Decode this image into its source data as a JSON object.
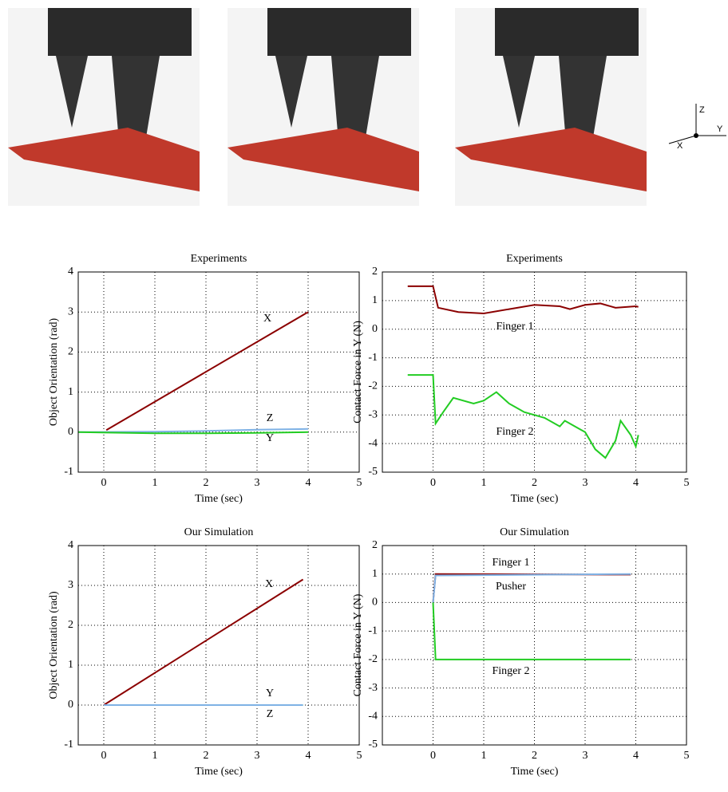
{
  "photo_axes": {
    "z": "Z",
    "y": "Y",
    "x": "X"
  },
  "chart_data": [
    {
      "type": "line",
      "title": "Experiments",
      "xlabel": "Time (sec)",
      "ylabel": "Object Orientation (rad)",
      "xlim": [
        -0.5,
        5
      ],
      "xticks": [
        0,
        1,
        2,
        3,
        4,
        5
      ],
      "ylim": [
        -1,
        4
      ],
      "yticks": [
        -1,
        0,
        1,
        2,
        3,
        4
      ],
      "grid": true,
      "annotations": [
        "X",
        "Z",
        "Y"
      ],
      "series": [
        {
          "color": "#8b0000",
          "x": [
            0.05,
            4
          ],
          "values": [
            0.05,
            3
          ]
        },
        {
          "color": "#7fb2e5",
          "x": [
            -0.5,
            1,
            2,
            3,
            4
          ],
          "values": [
            0,
            0.01,
            0.03,
            0.06,
            0.08
          ]
        },
        {
          "color": "#22cc22",
          "x": [
            -0.5,
            0.5,
            1,
            2,
            3,
            4
          ],
          "values": [
            0,
            -0.02,
            -0.03,
            -0.03,
            -0.02,
            0
          ]
        }
      ]
    },
    {
      "type": "line",
      "title": "Experiments",
      "xlabel": "Time (sec)",
      "ylabel": "Contact Force in Y (N)",
      "xlim": [
        -1,
        5
      ],
      "xticks": [
        0,
        1,
        2,
        3,
        4,
        5
      ],
      "ylim": [
        -5,
        2
      ],
      "yticks": [
        -5,
        -4,
        -3,
        -2,
        -1,
        0,
        1,
        2
      ],
      "grid": true,
      "annotations": [
        "Finger 1",
        "Finger 2"
      ],
      "series": [
        {
          "color": "#8b0000",
          "x": [
            -0.5,
            0,
            0.1,
            0.5,
            1,
            1.5,
            2,
            2.5,
            2.7,
            3,
            3.3,
            3.6,
            4,
            4.05
          ],
          "values": [
            1.5,
            1.5,
            0.75,
            0.6,
            0.55,
            0.7,
            0.85,
            0.8,
            0.7,
            0.85,
            0.9,
            0.75,
            0.8,
            0.78
          ]
        },
        {
          "color": "#22cc22",
          "x": [
            -0.5,
            0,
            0.05,
            0.2,
            0.4,
            0.8,
            1,
            1.25,
            1.5,
            1.8,
            2.2,
            2.5,
            2.6,
            2.9,
            3,
            3.2,
            3.4,
            3.6,
            3.7,
            3.9,
            4,
            4.05
          ],
          "values": [
            -1.6,
            -1.6,
            -3.3,
            -2.9,
            -2.4,
            -2.6,
            -2.5,
            -2.2,
            -2.6,
            -2.9,
            -3.1,
            -3.4,
            -3.2,
            -3.5,
            -3.6,
            -4.2,
            -4.5,
            -3.9,
            -3.2,
            -3.7,
            -4.1,
            -3.7
          ]
        }
      ]
    },
    {
      "type": "line",
      "title": "Our Simulation",
      "xlabel": "Time (sec)",
      "ylabel": "Object Orientation (rad)",
      "xlim": [
        -0.5,
        5
      ],
      "xticks": [
        0,
        1,
        2,
        3,
        4,
        5
      ],
      "ylim": [
        -1,
        4
      ],
      "yticks": [
        -1,
        0,
        1,
        2,
        3,
        4
      ],
      "grid": true,
      "annotations": [
        "X",
        "Y",
        "Z"
      ],
      "series": [
        {
          "color": "#8b0000",
          "x": [
            0,
            3.9
          ],
          "values": [
            0,
            3.15
          ]
        },
        {
          "color": "#22cc22",
          "x": [
            0,
            3.9
          ],
          "values": [
            0,
            0
          ]
        },
        {
          "color": "#7fb2e5",
          "x": [
            0,
            3.9
          ],
          "values": [
            0,
            0
          ]
        }
      ]
    },
    {
      "type": "line",
      "title": "Our Simulation",
      "xlabel": "Time (sec)",
      "ylabel": "Contact Force in Y (N)",
      "xlim": [
        -1,
        5
      ],
      "xticks": [
        0,
        1,
        2,
        3,
        4,
        5
      ],
      "ylim": [
        -5,
        2
      ],
      "yticks": [
        -5,
        -4,
        -3,
        -2,
        -1,
        0,
        1,
        2
      ],
      "grid": true,
      "annotations": [
        "Finger 1",
        "Pusher",
        "Finger 2"
      ],
      "series": [
        {
          "color": "#8b0000",
          "x": [
            0,
            0.05,
            3.9
          ],
          "values": [
            0,
            1,
            0.98
          ]
        },
        {
          "color": "#7fb2e5",
          "x": [
            0,
            0.05,
            3.9
          ],
          "values": [
            0,
            0.95,
            1
          ]
        },
        {
          "color": "#22cc22",
          "x": [
            0,
            0.05,
            3.9
          ],
          "values": [
            0,
            -2,
            -2
          ]
        }
      ]
    }
  ]
}
